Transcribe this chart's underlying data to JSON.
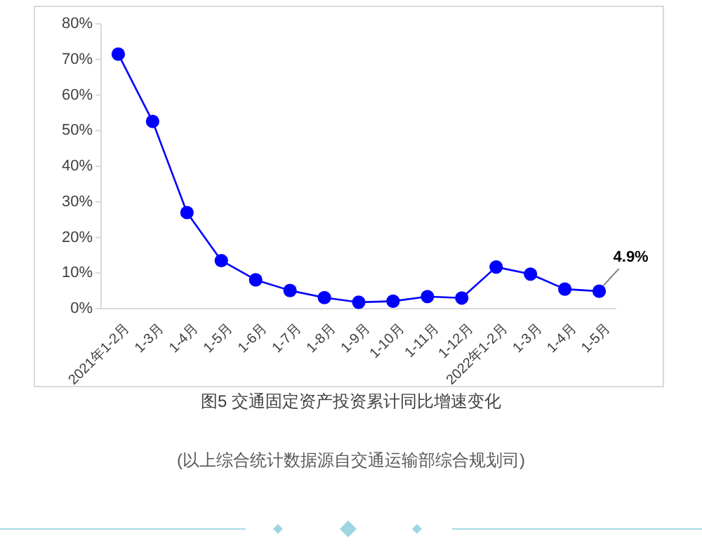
{
  "chart_data": {
    "type": "line",
    "title": "图5  交通固定资产投资累计同比增速变化",
    "categories": [
      "2021年1-2月",
      "1-3月",
      "1-4月",
      "1-5月",
      "1-6月",
      "1-7月",
      "1-8月",
      "1-9月",
      "1-10月",
      "1-11月",
      "1-12月",
      "2022年1-2月",
      "1-3月",
      "1-4月",
      "1-5月"
    ],
    "series": [
      {
        "color": "#0000ff",
        "values": [
          71.5,
          52.6,
          27.0,
          13.5,
          8.1,
          5.1,
          3.1,
          1.8,
          2.1,
          3.4,
          3.0,
          11.7,
          9.7,
          5.5,
          4.9
        ],
        "value_labels": [
          null,
          null,
          null,
          null,
          null,
          null,
          null,
          null,
          null,
          null,
          null,
          null,
          null,
          null,
          "4.9%"
        ]
      }
    ],
    "ylim": [
      0,
      80
    ],
    "yticks": [
      {
        "value": 0,
        "label": "0%"
      },
      {
        "value": 10,
        "label": "10%"
      },
      {
        "value": 20,
        "label": "20%"
      },
      {
        "value": 30,
        "label": "30%"
      },
      {
        "value": 40,
        "label": "40%"
      },
      {
        "value": 50,
        "label": "50%"
      },
      {
        "value": 60,
        "label": "60%"
      },
      {
        "value": 70,
        "label": "70%"
      },
      {
        "value": 80,
        "label": "80%"
      }
    ],
    "marker": "circle",
    "line_style": "solid",
    "annotations": [
      "(以上综合统计数据源自交通运输部综合规划司)"
    ]
  }
}
